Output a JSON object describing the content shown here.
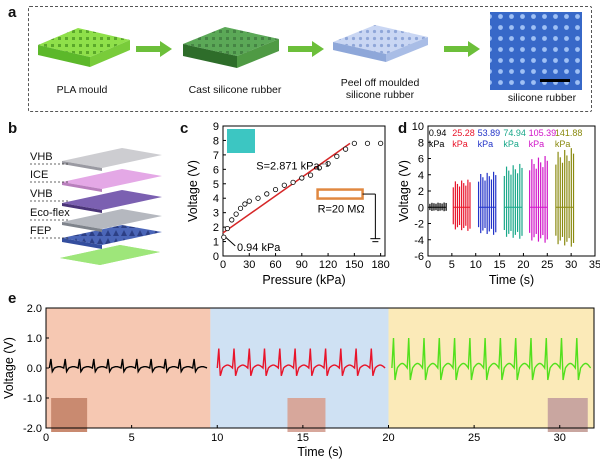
{
  "panel_a": {
    "letter": "a",
    "steps": [
      "PLA mould",
      "Cast silicone rubber",
      "Peel off moulded silicone rubber",
      "silicone rubber"
    ],
    "colors": {
      "pla": "#7cd63a",
      "cast": "#3f8f35",
      "peel": "#b7c9ee",
      "photo": "#3a6fd0",
      "arrow": "#6cbf3a"
    }
  },
  "panel_b": {
    "letter": "b",
    "layers": [
      "VHB",
      "ICE",
      "VHB",
      "Eco-flex",
      "FEP"
    ]
  },
  "panel_c": {
    "letter": "c",
    "slope_label": "S=2.871 kPa⁻¹",
    "threshold_label": "0.94 kPa",
    "resistor_label": "R=20 MΩ",
    "chart_data": {
      "type": "scatter",
      "xlabel": "Pressure (kPa)",
      "ylabel": "Voltage (V)",
      "xlim": [
        0,
        185
      ],
      "ylim": [
        0,
        9
      ],
      "xticks": [
        0,
        30,
        60,
        90,
        120,
        150,
        180
      ],
      "yticks": [
        0,
        1,
        2,
        3,
        4,
        5,
        6,
        7,
        8,
        9
      ],
      "x": [
        0.94,
        5,
        10,
        15,
        20,
        25,
        30,
        40,
        50,
        60,
        70,
        80,
        90,
        100,
        110,
        120,
        130,
        140,
        150,
        165,
        180
      ],
      "y": [
        1.3,
        1.9,
        2.5,
        2.9,
        3.3,
        3.6,
        3.8,
        4.0,
        4.3,
        4.6,
        4.9,
        5.1,
        5.4,
        5.6,
        6.1,
        6.4,
        6.9,
        7.4,
        7.8,
        7.8,
        7.8
      ],
      "fit": {
        "x": [
          0,
          145
        ],
        "y": [
          1.6,
          7.8
        ],
        "color": "#d62728"
      }
    }
  },
  "panel_d": {
    "letter": "d",
    "chart_data": {
      "type": "line",
      "xlabel": "Time (s)",
      "ylabel": "Voltage (V)",
      "xlim": [
        0,
        35
      ],
      "ylim": [
        -6,
        10
      ],
      "xticks": [
        0,
        5,
        10,
        15,
        20,
        25,
        30,
        35
      ],
      "yticks": [
        -6,
        -4,
        -2,
        0,
        2,
        4,
        6,
        8,
        10
      ],
      "series": [
        {
          "name": "0.94 kPa",
          "value": "0.94",
          "unit": "kPa",
          "color": "#000000",
          "t": [
            0.4,
            3.8
          ],
          "amp": [
            0.6,
            -0.5
          ]
        },
        {
          "name": "25.28 kPa",
          "value": "25.28",
          "unit": "kPa",
          "color": "#e8142a",
          "t": [
            5.3,
            8.8
          ],
          "amp": [
            3.5,
            -3.0
          ]
        },
        {
          "name": "53.89 kPa",
          "value": "53.89",
          "unit": "kPa",
          "color": "#2233c8",
          "t": [
            10.6,
            14.2
          ],
          "amp": [
            4.5,
            -3.5
          ]
        },
        {
          "name": "74.94 kPa",
          "value": "74.94",
          "unit": "kPa",
          "color": "#1aa88a",
          "t": [
            16.0,
            19.7
          ],
          "amp": [
            5.5,
            -4.0
          ]
        },
        {
          "name": "105.39 kPa",
          "value": "105.39",
          "unit": "kPa",
          "color": "#d014c8",
          "t": [
            21.3,
            25.0
          ],
          "amp": [
            6.5,
            -4.5
          ]
        },
        {
          "name": "141.88 kPa",
          "value": "141.88",
          "unit": "kPa",
          "color": "#8a8a10",
          "t": [
            26.8,
            30.5
          ],
          "amp": [
            7.5,
            -5.0
          ]
        }
      ]
    }
  },
  "panel_e": {
    "letter": "e",
    "chart_data": {
      "type": "line",
      "xlabel": "Time (s)",
      "ylabel": "Voltage (V)",
      "xlim": [
        0,
        32
      ],
      "ylim": [
        -2.0,
        2.0
      ],
      "xticks": [
        0,
        5,
        10,
        15,
        20,
        25,
        30
      ],
      "yticks": [
        -2.0,
        -1.0,
        0.0,
        1.0,
        2.0
      ],
      "ytick_labels": [
        "-2.0",
        "-1.0",
        "0.0",
        "1.0",
        "2.0"
      ],
      "regions": [
        {
          "x": [
            0,
            9.6
          ],
          "color": "#f6c8b2"
        },
        {
          "x": [
            9.6,
            20
          ],
          "color": "#cfe1f3"
        },
        {
          "x": [
            20,
            32
          ],
          "color": "#fbeab8"
        }
      ],
      "series": [
        {
          "t": [
            0.2,
            9.4
          ],
          "amp": 0.3,
          "color": "#000000",
          "peaks": 11
        },
        {
          "t": [
            10,
            19.8
          ],
          "amp": 0.65,
          "color": "#e8142a",
          "peaks": 11
        },
        {
          "t": [
            20.2,
            31.8
          ],
          "amp": 1.0,
          "color": "#52e01c",
          "peaks": 13
        }
      ]
    }
  }
}
